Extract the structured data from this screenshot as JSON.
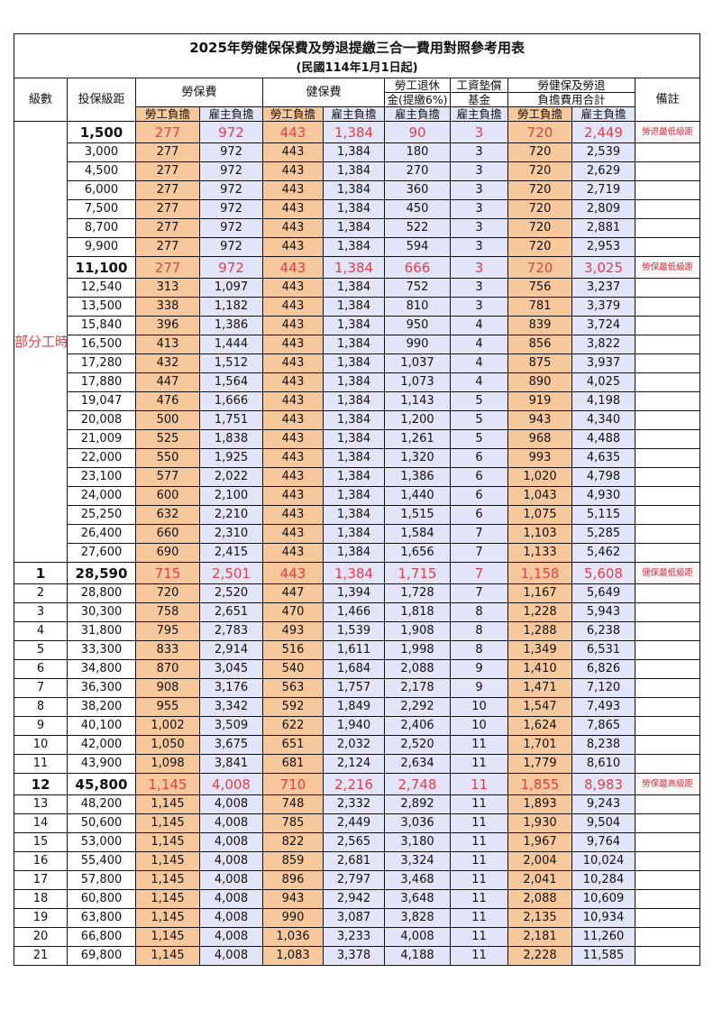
{
  "title": "2025年勞健保保費及勞退提繳三合一費用對照參考用表",
  "subtitle": "(民國114年1月1日起)",
  "headers": {
    "grade": "級數",
    "salary": "投保級距",
    "labor_insurance": "勞保費",
    "health_insurance": "健保費",
    "pension_top": "勞工退休",
    "pension_bottom": "金(提繳6%)",
    "wage_top": "工資墊償",
    "wage_bottom": "基金",
    "total_top": "勞健保及勞退",
    "total_bottom": "負擔費用合計",
    "note": "備註",
    "employee": "勞工負擔",
    "employer": "雇主負擔"
  },
  "part_time_label": "部分工時",
  "colors": {
    "employee_bg": "#F8C89D",
    "employer_bg": "#E4E4F8",
    "highlight_text": "#E0404A"
  },
  "part_time_rows": [
    [
      "1,500",
      "277",
      "972",
      "443",
      "1,384",
      "90",
      "3",
      "720",
      "2,449",
      "勞退最低級距",
      true
    ],
    [
      "3,000",
      "277",
      "972",
      "443",
      "1,384",
      "180",
      "3",
      "720",
      "2,539",
      "",
      false
    ],
    [
      "4,500",
      "277",
      "972",
      "443",
      "1,384",
      "270",
      "3",
      "720",
      "2,629",
      "",
      false
    ],
    [
      "6,000",
      "277",
      "972",
      "443",
      "1,384",
      "360",
      "3",
      "720",
      "2,719",
      "",
      false
    ],
    [
      "7,500",
      "277",
      "972",
      "443",
      "1,384",
      "450",
      "3",
      "720",
      "2,809",
      "",
      false
    ],
    [
      "8,700",
      "277",
      "972",
      "443",
      "1,384",
      "522",
      "3",
      "720",
      "2,881",
      "",
      false
    ],
    [
      "9,900",
      "277",
      "972",
      "443",
      "1,384",
      "594",
      "3",
      "720",
      "2,953",
      "",
      false
    ],
    [
      "11,100",
      "277",
      "972",
      "443",
      "1,384",
      "666",
      "3",
      "720",
      "3,025",
      "勞保最低級距",
      true
    ],
    [
      "12,540",
      "313",
      "1,097",
      "443",
      "1,384",
      "752",
      "3",
      "756",
      "3,237",
      "",
      false
    ],
    [
      "13,500",
      "338",
      "1,182",
      "443",
      "1,384",
      "810",
      "3",
      "781",
      "3,379",
      "",
      false
    ],
    [
      "15,840",
      "396",
      "1,386",
      "443",
      "1,384",
      "950",
      "4",
      "839",
      "3,724",
      "",
      false
    ],
    [
      "16,500",
      "413",
      "1,444",
      "443",
      "1,384",
      "990",
      "4",
      "856",
      "3,822",
      "",
      false
    ],
    [
      "17,280",
      "432",
      "1,512",
      "443",
      "1,384",
      "1,037",
      "4",
      "875",
      "3,937",
      "",
      false
    ],
    [
      "17,880",
      "447",
      "1,564",
      "443",
      "1,384",
      "1,073",
      "4",
      "890",
      "4,025",
      "",
      false
    ],
    [
      "19,047",
      "476",
      "1,666",
      "443",
      "1,384",
      "1,143",
      "5",
      "919",
      "4,198",
      "",
      false
    ],
    [
      "20,008",
      "500",
      "1,751",
      "443",
      "1,384",
      "1,200",
      "5",
      "943",
      "4,340",
      "",
      false
    ],
    [
      "21,009",
      "525",
      "1,838",
      "443",
      "1,384",
      "1,261",
      "5",
      "968",
      "4,488",
      "",
      false
    ],
    [
      "22,000",
      "550",
      "1,925",
      "443",
      "1,384",
      "1,320",
      "6",
      "993",
      "4,635",
      "",
      false
    ],
    [
      "23,100",
      "577",
      "2,022",
      "443",
      "1,384",
      "1,386",
      "6",
      "1,020",
      "4,798",
      "",
      false
    ],
    [
      "24,000",
      "600",
      "2,100",
      "443",
      "1,384",
      "1,440",
      "6",
      "1,043",
      "4,930",
      "",
      false
    ],
    [
      "25,250",
      "632",
      "2,210",
      "443",
      "1,384",
      "1,515",
      "6",
      "1,075",
      "5,115",
      "",
      false
    ],
    [
      "26,400",
      "660",
      "2,310",
      "443",
      "1,384",
      "1,584",
      "7",
      "1,103",
      "5,285",
      "",
      false
    ],
    [
      "27,600",
      "690",
      "2,415",
      "443",
      "1,384",
      "1,656",
      "7",
      "1,133",
      "5,462",
      "",
      false
    ]
  ],
  "grade_rows": [
    [
      "1",
      "28,590",
      "715",
      "2,501",
      "443",
      "1,384",
      "1,715",
      "7",
      "1,158",
      "5,608",
      "健保最低級距",
      true
    ],
    [
      "2",
      "28,800",
      "720",
      "2,520",
      "447",
      "1,394",
      "1,728",
      "7",
      "1,167",
      "5,649",
      "",
      false
    ],
    [
      "3",
      "30,300",
      "758",
      "2,651",
      "470",
      "1,466",
      "1,818",
      "8",
      "1,228",
      "5,943",
      "",
      false
    ],
    [
      "4",
      "31,800",
      "795",
      "2,783",
      "493",
      "1,539",
      "1,908",
      "8",
      "1,288",
      "6,238",
      "",
      false
    ],
    [
      "5",
      "33,300",
      "833",
      "2,914",
      "516",
      "1,611",
      "1,998",
      "8",
      "1,349",
      "6,531",
      "",
      false
    ],
    [
      "6",
      "34,800",
      "870",
      "3,045",
      "540",
      "1,684",
      "2,088",
      "9",
      "1,410",
      "6,826",
      "",
      false
    ],
    [
      "7",
      "36,300",
      "908",
      "3,176",
      "563",
      "1,757",
      "2,178",
      "9",
      "1,471",
      "7,120",
      "",
      false
    ],
    [
      "8",
      "38,200",
      "955",
      "3,342",
      "592",
      "1,849",
      "2,292",
      "10",
      "1,547",
      "7,493",
      "",
      false
    ],
    [
      "9",
      "40,100",
      "1,002",
      "3,509",
      "622",
      "1,940",
      "2,406",
      "10",
      "1,624",
      "7,865",
      "",
      false
    ],
    [
      "10",
      "42,000",
      "1,050",
      "3,675",
      "651",
      "2,032",
      "2,520",
      "11",
      "1,701",
      "8,238",
      "",
      false
    ],
    [
      "11",
      "43,900",
      "1,098",
      "3,841",
      "681",
      "2,124",
      "2,634",
      "11",
      "1,779",
      "8,610",
      "",
      false
    ],
    [
      "12",
      "45,800",
      "1,145",
      "4,008",
      "710",
      "2,216",
      "2,748",
      "11",
      "1,855",
      "8,983",
      "勞保最高級距",
      true
    ],
    [
      "13",
      "48,200",
      "1,145",
      "4,008",
      "748",
      "2,332",
      "2,892",
      "11",
      "1,893",
      "9,243",
      "",
      false
    ],
    [
      "14",
      "50,600",
      "1,145",
      "4,008",
      "785",
      "2,449",
      "3,036",
      "11",
      "1,930",
      "9,504",
      "",
      false
    ],
    [
      "15",
      "53,000",
      "1,145",
      "4,008",
      "822",
      "2,565",
      "3,180",
      "11",
      "1,967",
      "9,764",
      "",
      false
    ],
    [
      "16",
      "55,400",
      "1,145",
      "4,008",
      "859",
      "2,681",
      "3,324",
      "11",
      "2,004",
      "10,024",
      "",
      false
    ],
    [
      "17",
      "57,800",
      "1,145",
      "4,008",
      "896",
      "2,797",
      "3,468",
      "11",
      "2,041",
      "10,284",
      "",
      false
    ],
    [
      "18",
      "60,800",
      "1,145",
      "4,008",
      "943",
      "2,942",
      "3,648",
      "11",
      "2,088",
      "10,609",
      "",
      false
    ],
    [
      "19",
      "63,800",
      "1,145",
      "4,008",
      "990",
      "3,087",
      "3,828",
      "11",
      "2,135",
      "10,934",
      "",
      false
    ],
    [
      "20",
      "66,800",
      "1,145",
      "4,008",
      "1,036",
      "3,233",
      "4,008",
      "11",
      "2,181",
      "11,260",
      "",
      false
    ],
    [
      "21",
      "69,800",
      "1,145",
      "4,008",
      "1,083",
      "3,378",
      "4,188",
      "11",
      "2,228",
      "11,585",
      "",
      false
    ]
  ]
}
